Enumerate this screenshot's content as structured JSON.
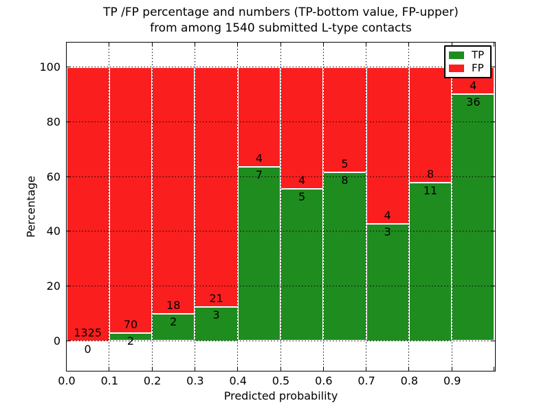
{
  "title": {
    "line1": "TP /FP percentage and numbers (TP-bottom value, FP-upper)",
    "line2": "from among 1540 submitted L-type contacts"
  },
  "legend": {
    "position": "upper right",
    "items": [
      {
        "label": "TP",
        "color": "#1f8c1f"
      },
      {
        "label": "FP",
        "color": "#fa1e1e"
      }
    ]
  },
  "colors": {
    "tp_green": "#1f8c1f",
    "fp_red": "#fa1e1e",
    "axis": "#000000",
    "bar_edge": "#ffffff",
    "background": "#ffffff"
  },
  "chart_data": {
    "type": "bar",
    "stacked": true,
    "normalized": "each 0.1-wide probability bin scaled to 100%",
    "title": "TP /FP percentage and numbers (TP-bottom value, FP-upper) from among 1540 submitted L-type contacts",
    "xlabel": "Predicted probability",
    "ylabel": "Percentage",
    "categories": [
      "0.0-0.1",
      "0.1-0.2",
      "0.2-0.3",
      "0.3-0.4",
      "0.4-0.5",
      "0.5-0.6",
      "0.6-0.7",
      "0.7-0.8",
      "0.8-0.9",
      "0.9-1.0"
    ],
    "series": [
      {
        "name": "TP",
        "color": "#1f8c1f",
        "counts": [
          0,
          2,
          2,
          3,
          7,
          5,
          8,
          3,
          11,
          36
        ]
      },
      {
        "name": "FP",
        "color": "#fa1e1e",
        "counts": [
          1325,
          70,
          18,
          21,
          4,
          4,
          5,
          4,
          8,
          4
        ]
      }
    ],
    "total_submitted": 1540,
    "x_tick_labels": [
      "0.0",
      "0.1",
      "0.2",
      "0.3",
      "0.4",
      "0.5",
      "0.6",
      "0.7",
      "0.8",
      "0.9"
    ],
    "y_tick_labels": [
      "0",
      "20",
      "40",
      "60",
      "80",
      "100"
    ],
    "xlim": [
      0.0,
      1.0
    ],
    "ylim": [
      -10.8,
      109.0
    ],
    "grid": "dotted black lines drawn above bars",
    "legend_position": "upper right",
    "annotation_rule": "FP count printed above each stack boundary, TP count below it"
  }
}
